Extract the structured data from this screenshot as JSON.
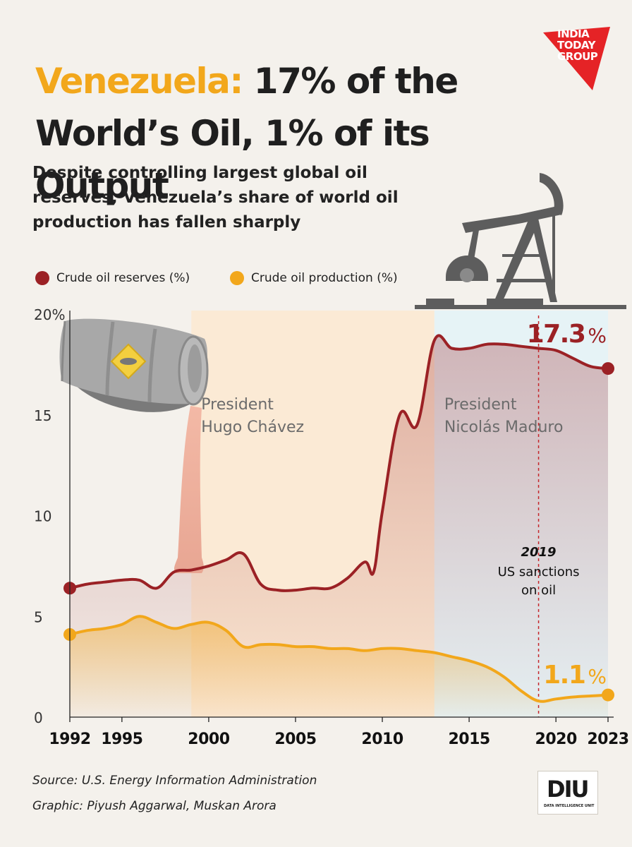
{
  "header": {
    "title_highlight": "Venezuela:",
    "title_line1_rest": " 17% of the",
    "title_line2": "World’s Oil, 1% of its Output",
    "subtitle": "Despite controlling largest global oil reserves, Venezuela’s share of world oil production has fallen sharply"
  },
  "brand": {
    "logo_lines": [
      "INDIA",
      "TODAY",
      "GROUP"
    ],
    "diu_text": "DIU",
    "diu_sub": "DATA INTELLIGENCE UNIT"
  },
  "colors": {
    "reserves": "#9b2125",
    "production": "#f2a71b",
    "title_accent": "#f2a71b",
    "chavez_band": "#fbead5",
    "maduro_band": "#e6f3f6",
    "brand_red": "#e52326"
  },
  "icons": [
    "oil-barrel-icon",
    "pumpjack-icon"
  ],
  "footer": {
    "source": "Source: U.S. Energy Information Administration",
    "credit": "Graphic: Piyush Aggarwal, Muskan Arora"
  },
  "chart_data": {
    "type": "area",
    "title": "",
    "xlabel": "",
    "ylabel": "",
    "xlim": [
      1992,
      2023
    ],
    "ylim": [
      0,
      20
    ],
    "grid": false,
    "legend_position": "top-left",
    "x_ticks": [
      1992,
      1995,
      2000,
      2005,
      2010,
      2015,
      2020,
      2023
    ],
    "y_ticks": [
      {
        "value": 0,
        "label": "0"
      },
      {
        "value": 5,
        "label": "5"
      },
      {
        "value": 10,
        "label": "10"
      },
      {
        "value": 15,
        "label": "15"
      },
      {
        "value": 20,
        "label": "20%"
      }
    ],
    "series": [
      {
        "name": "Crude oil reserves (%)",
        "color": "#9b2125",
        "end_label": "17.3",
        "end_unit": "%",
        "x": [
          1992,
          1993,
          1994,
          1995,
          1996,
          1997,
          1998,
          1999,
          2000,
          2001,
          2002,
          2003,
          2004,
          2005,
          2006,
          2007,
          2008,
          2009,
          2009.5,
          2010,
          2011,
          2012,
          2013,
          2014,
          2015,
          2016,
          2017,
          2018,
          2019,
          2020,
          2021,
          2022,
          2023
        ],
        "values": [
          6.4,
          6.6,
          6.7,
          6.8,
          6.8,
          6.4,
          7.2,
          7.3,
          7.5,
          7.8,
          8.1,
          6.6,
          6.3,
          6.3,
          6.4,
          6.4,
          6.9,
          7.7,
          7.2,
          10.2,
          15.0,
          14.5,
          18.7,
          18.3,
          18.3,
          18.5,
          18.5,
          18.4,
          18.3,
          18.2,
          17.8,
          17.4,
          17.3
        ]
      },
      {
        "name": "Crude oil production (%)",
        "color": "#f2a71b",
        "end_label": "1.1",
        "end_unit": "%",
        "x": [
          1992,
          1993,
          1994,
          1995,
          1996,
          1997,
          1998,
          1999,
          2000,
          2001,
          2002,
          2003,
          2004,
          2005,
          2006,
          2007,
          2008,
          2009,
          2010,
          2011,
          2012,
          2013,
          2014,
          2015,
          2016,
          2017,
          2018,
          2019,
          2020,
          2021,
          2022,
          2023
        ],
        "values": [
          4.1,
          4.3,
          4.4,
          4.6,
          5.0,
          4.7,
          4.4,
          4.6,
          4.7,
          4.3,
          3.5,
          3.6,
          3.6,
          3.5,
          3.5,
          3.4,
          3.4,
          3.3,
          3.4,
          3.4,
          3.3,
          3.2,
          3.0,
          2.8,
          2.5,
          2.0,
          1.3,
          0.8,
          0.9,
          1.0,
          1.05,
          1.1
        ]
      }
    ],
    "bands": [
      {
        "from": 1999,
        "to": 2013,
        "label_line1": "President",
        "label_line2": "Hugo Chávez"
      },
      {
        "from": 2013,
        "to": 2023,
        "label_line1": "President",
        "label_line2": "Nicolás Maduro"
      }
    ],
    "annotations": [
      {
        "x": 2019,
        "year": "2019",
        "text_line1": "US sanctions",
        "text_line2": "on oil"
      }
    ]
  }
}
